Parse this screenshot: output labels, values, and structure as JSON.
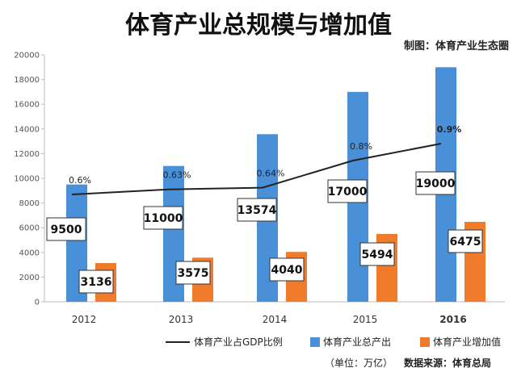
{
  "title": "体育产业总规模与增加值",
  "credit": "制图：体育产业生态圈",
  "unit_note": "（单位：万亿）",
  "source_note": "数据来源：体育总局",
  "colors": {
    "total": "#4a90d9",
    "added": "#f07b2a",
    "line": "#222222"
  },
  "chart_data": {
    "type": "bar",
    "categories": [
      "2012",
      "2013",
      "2014",
      "2015",
      "2016"
    ],
    "ylim": [
      0,
      20000
    ],
    "yticks": [
      0,
      2000,
      4000,
      6000,
      8000,
      10000,
      12000,
      14000,
      16000,
      18000,
      20000
    ],
    "series": [
      {
        "name": "体育产业总产出",
        "values": [
          9500,
          11000,
          13574,
          17000,
          19000
        ],
        "labels": [
          "9500",
          "11000",
          "13574",
          "17000",
          "19000"
        ]
      },
      {
        "name": "体育产业增加值",
        "values": [
          3136,
          3575,
          4040,
          5494,
          6475
        ],
        "labels": [
          "3136",
          "3575",
          "4040",
          "5494",
          "6475"
        ]
      }
    ],
    "line_series": {
      "name": "体育产业占GDP比例",
      "values": [
        0.6,
        0.63,
        0.64,
        0.8,
        0.9
      ],
      "labels": [
        "0.6%",
        "0.63%",
        "0.64%",
        "0.8%",
        "0.9%"
      ]
    },
    "legend_position": "bottom",
    "grid": false
  }
}
